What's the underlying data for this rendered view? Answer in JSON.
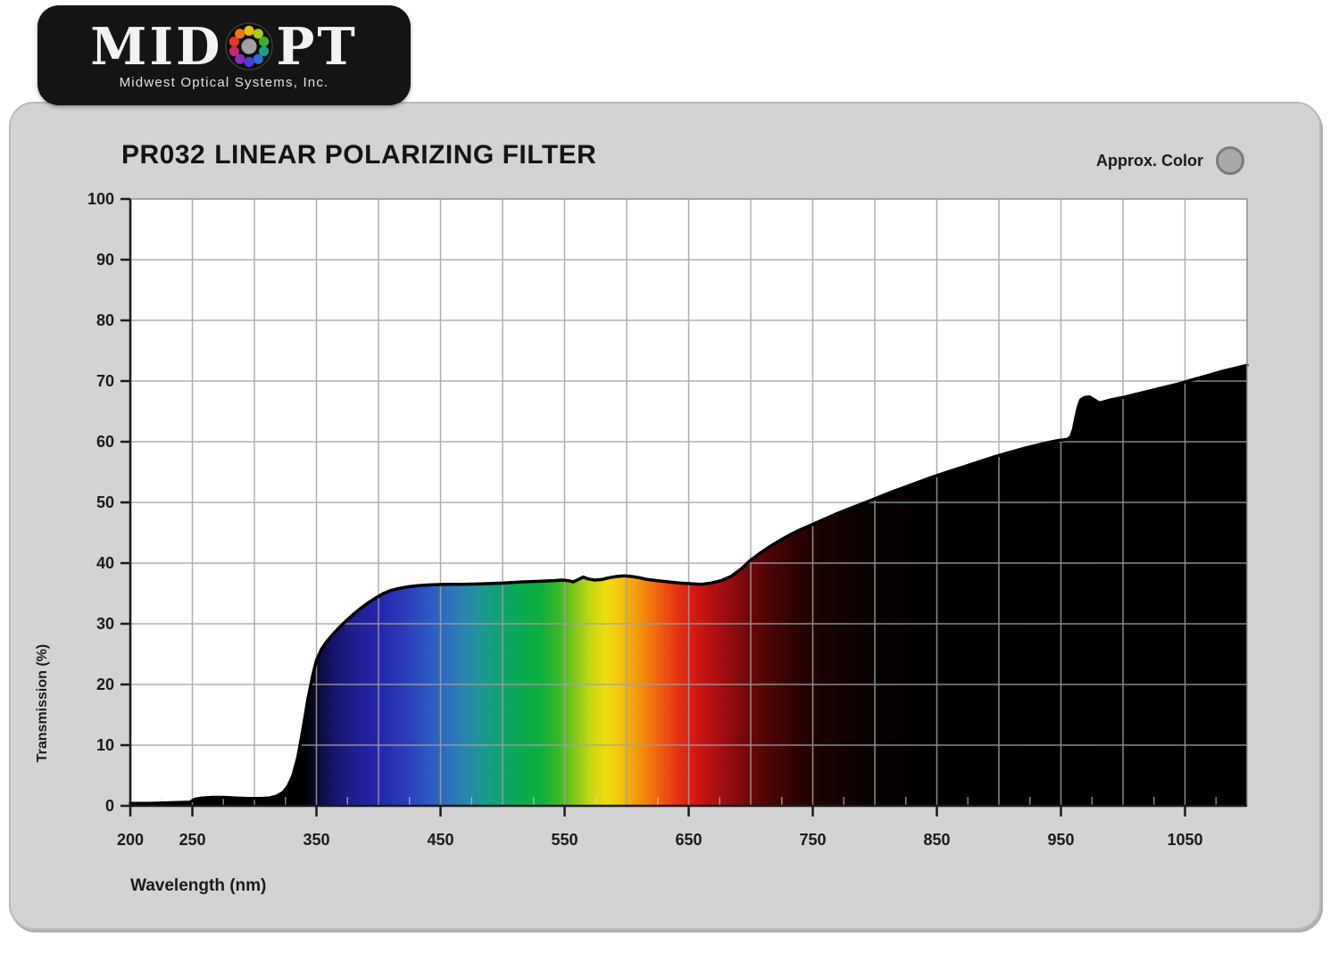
{
  "logo": {
    "brand_pre": "MID",
    "brand_post": "PT",
    "subtitle": "Midwest Optical Systems, Inc.",
    "wheel_dot_colors": [
      "#e8ba12",
      "#a8cc15",
      "#3fae35",
      "#18a08c",
      "#2a6fd0",
      "#4a3fd0",
      "#8c2fb8",
      "#c42a6a",
      "#e8381f",
      "#f07818"
    ],
    "wheel_center_color": "#a2a2a2"
  },
  "header": {
    "part_number": "PR032",
    "product_title": "LINEAR POLARIZING FILTER",
    "approx_color_label": "Approx. Color",
    "approx_color_swatch": "#a9a9a9"
  },
  "chart_data": {
    "type": "area",
    "title": "PR032 LINEAR POLARIZING FILTER",
    "xlabel": "Wavelength (nm)",
    "ylabel": "Transmission (%)",
    "xlim": [
      200,
      1100
    ],
    "ylim": [
      0,
      100
    ],
    "x_tick_labels": [
      200,
      250,
      350,
      450,
      550,
      650,
      750,
      850,
      950,
      1050
    ],
    "x_grid_step": 50,
    "x_minor_tick_step": 25,
    "y_tick_step": 10,
    "grid": true,
    "legend": "none",
    "colors": {
      "plot_bg": "#ffffff",
      "grid": "#a2a2a2",
      "minor_tick": "#d8d8d8",
      "border": "#8f8f8f",
      "axis": "#1b1b1b",
      "curve": "#000000",
      "label": "#1a1a1a"
    },
    "series": [
      {
        "name": "Transmission",
        "points": [
          [
            200,
            0.4
          ],
          [
            215,
            0.4
          ],
          [
            230,
            0.5
          ],
          [
            248,
            0.6
          ],
          [
            252,
            1.1
          ],
          [
            258,
            1.3
          ],
          [
            266,
            1.4
          ],
          [
            275,
            1.4
          ],
          [
            285,
            1.3
          ],
          [
            295,
            1.2
          ],
          [
            305,
            1.2
          ],
          [
            312,
            1.3
          ],
          [
            318,
            1.6
          ],
          [
            323,
            2.2
          ],
          [
            327,
            3.2
          ],
          [
            331,
            5.0
          ],
          [
            335,
            8.0
          ],
          [
            339,
            12.5
          ],
          [
            343,
            17.5
          ],
          [
            347,
            21.5
          ],
          [
            350,
            24.0
          ],
          [
            354,
            25.8
          ],
          [
            358,
            27.0
          ],
          [
            363,
            28.2
          ],
          [
            368,
            29.3
          ],
          [
            374,
            30.5
          ],
          [
            380,
            31.6
          ],
          [
            386,
            32.6
          ],
          [
            392,
            33.5
          ],
          [
            398,
            34.3
          ],
          [
            404,
            35.0
          ],
          [
            410,
            35.5
          ],
          [
            416,
            35.8
          ],
          [
            424,
            36.1
          ],
          [
            432,
            36.3
          ],
          [
            440,
            36.4
          ],
          [
            455,
            36.5
          ],
          [
            470,
            36.5
          ],
          [
            485,
            36.6
          ],
          [
            500,
            36.7
          ],
          [
            515,
            36.9
          ],
          [
            530,
            37.0
          ],
          [
            540,
            37.1
          ],
          [
            548,
            37.2
          ],
          [
            553,
            37.1
          ],
          [
            557,
            36.9
          ],
          [
            561,
            37.3
          ],
          [
            565,
            37.7
          ],
          [
            569,
            37.4
          ],
          [
            574,
            37.2
          ],
          [
            580,
            37.3
          ],
          [
            586,
            37.6
          ],
          [
            592,
            37.8
          ],
          [
            598,
            37.9
          ],
          [
            604,
            37.8
          ],
          [
            610,
            37.6
          ],
          [
            617,
            37.3
          ],
          [
            625,
            37.1
          ],
          [
            634,
            36.9
          ],
          [
            643,
            36.7
          ],
          [
            652,
            36.6
          ],
          [
            660,
            36.5
          ],
          [
            668,
            36.7
          ],
          [
            676,
            37.1
          ],
          [
            684,
            37.8
          ],
          [
            692,
            39.0
          ],
          [
            700,
            40.5
          ],
          [
            708,
            41.7
          ],
          [
            716,
            42.8
          ],
          [
            724,
            43.8
          ],
          [
            732,
            44.7
          ],
          [
            740,
            45.5
          ],
          [
            750,
            46.4
          ],
          [
            760,
            47.3
          ],
          [
            770,
            48.2
          ],
          [
            780,
            49.0
          ],
          [
            790,
            49.8
          ],
          [
            800,
            50.6
          ],
          [
            812,
            51.6
          ],
          [
            824,
            52.5
          ],
          [
            836,
            53.4
          ],
          [
            848,
            54.3
          ],
          [
            860,
            55.1
          ],
          [
            872,
            55.9
          ],
          [
            884,
            56.7
          ],
          [
            896,
            57.5
          ],
          [
            908,
            58.2
          ],
          [
            920,
            58.9
          ],
          [
            930,
            59.4
          ],
          [
            940,
            59.9
          ],
          [
            948,
            60.2
          ],
          [
            955,
            60.4
          ],
          [
            958,
            60.8
          ],
          [
            960,
            62.0
          ],
          [
            962,
            64.0
          ],
          [
            964,
            65.8
          ],
          [
            966,
            66.9
          ],
          [
            969,
            67.3
          ],
          [
            973,
            67.4
          ],
          [
            977,
            66.9
          ],
          [
            981,
            66.4
          ],
          [
            985,
            66.6
          ],
          [
            990,
            66.9
          ],
          [
            1000,
            67.3
          ],
          [
            1010,
            67.8
          ],
          [
            1020,
            68.3
          ],
          [
            1032,
            68.9
          ],
          [
            1044,
            69.5
          ],
          [
            1056,
            70.2
          ],
          [
            1068,
            70.9
          ],
          [
            1080,
            71.6
          ],
          [
            1090,
            72.1
          ],
          [
            1100,
            72.6
          ]
        ]
      }
    ],
    "fill_gradient_stops": [
      {
        "at": 200,
        "color": "#000000"
      },
      {
        "at": 340,
        "color": "#000000"
      },
      {
        "at": 352,
        "color": "#0b0b38"
      },
      {
        "at": 365,
        "color": "#16166e"
      },
      {
        "at": 382,
        "color": "#1f1f92"
      },
      {
        "at": 400,
        "color": "#2526ab"
      },
      {
        "at": 420,
        "color": "#2a3ab8"
      },
      {
        "at": 440,
        "color": "#2d57c2"
      },
      {
        "at": 455,
        "color": "#2e6ec0"
      },
      {
        "at": 470,
        "color": "#2986ab"
      },
      {
        "at": 485,
        "color": "#1b9990"
      },
      {
        "at": 500,
        "color": "#10a26e"
      },
      {
        "at": 515,
        "color": "#0ba950"
      },
      {
        "at": 532,
        "color": "#0fae3c"
      },
      {
        "at": 546,
        "color": "#3cb827"
      },
      {
        "at": 560,
        "color": "#8cc91a"
      },
      {
        "at": 572,
        "color": "#c8d813"
      },
      {
        "at": 583,
        "color": "#ecdf0f"
      },
      {
        "at": 593,
        "color": "#f3c90d"
      },
      {
        "at": 604,
        "color": "#f4a70b"
      },
      {
        "at": 616,
        "color": "#f1820c"
      },
      {
        "at": 629,
        "color": "#ed570e"
      },
      {
        "at": 641,
        "color": "#e43312"
      },
      {
        "at": 653,
        "color": "#d61b14"
      },
      {
        "at": 666,
        "color": "#ba1113"
      },
      {
        "at": 681,
        "color": "#970d0f"
      },
      {
        "at": 697,
        "color": "#710808"
      },
      {
        "at": 714,
        "color": "#4e0505"
      },
      {
        "at": 733,
        "color": "#320303"
      },
      {
        "at": 758,
        "color": "#1a0202"
      },
      {
        "at": 795,
        "color": "#0a0101"
      },
      {
        "at": 840,
        "color": "#020000"
      },
      {
        "at": 1100,
        "color": "#000000"
      }
    ]
  }
}
